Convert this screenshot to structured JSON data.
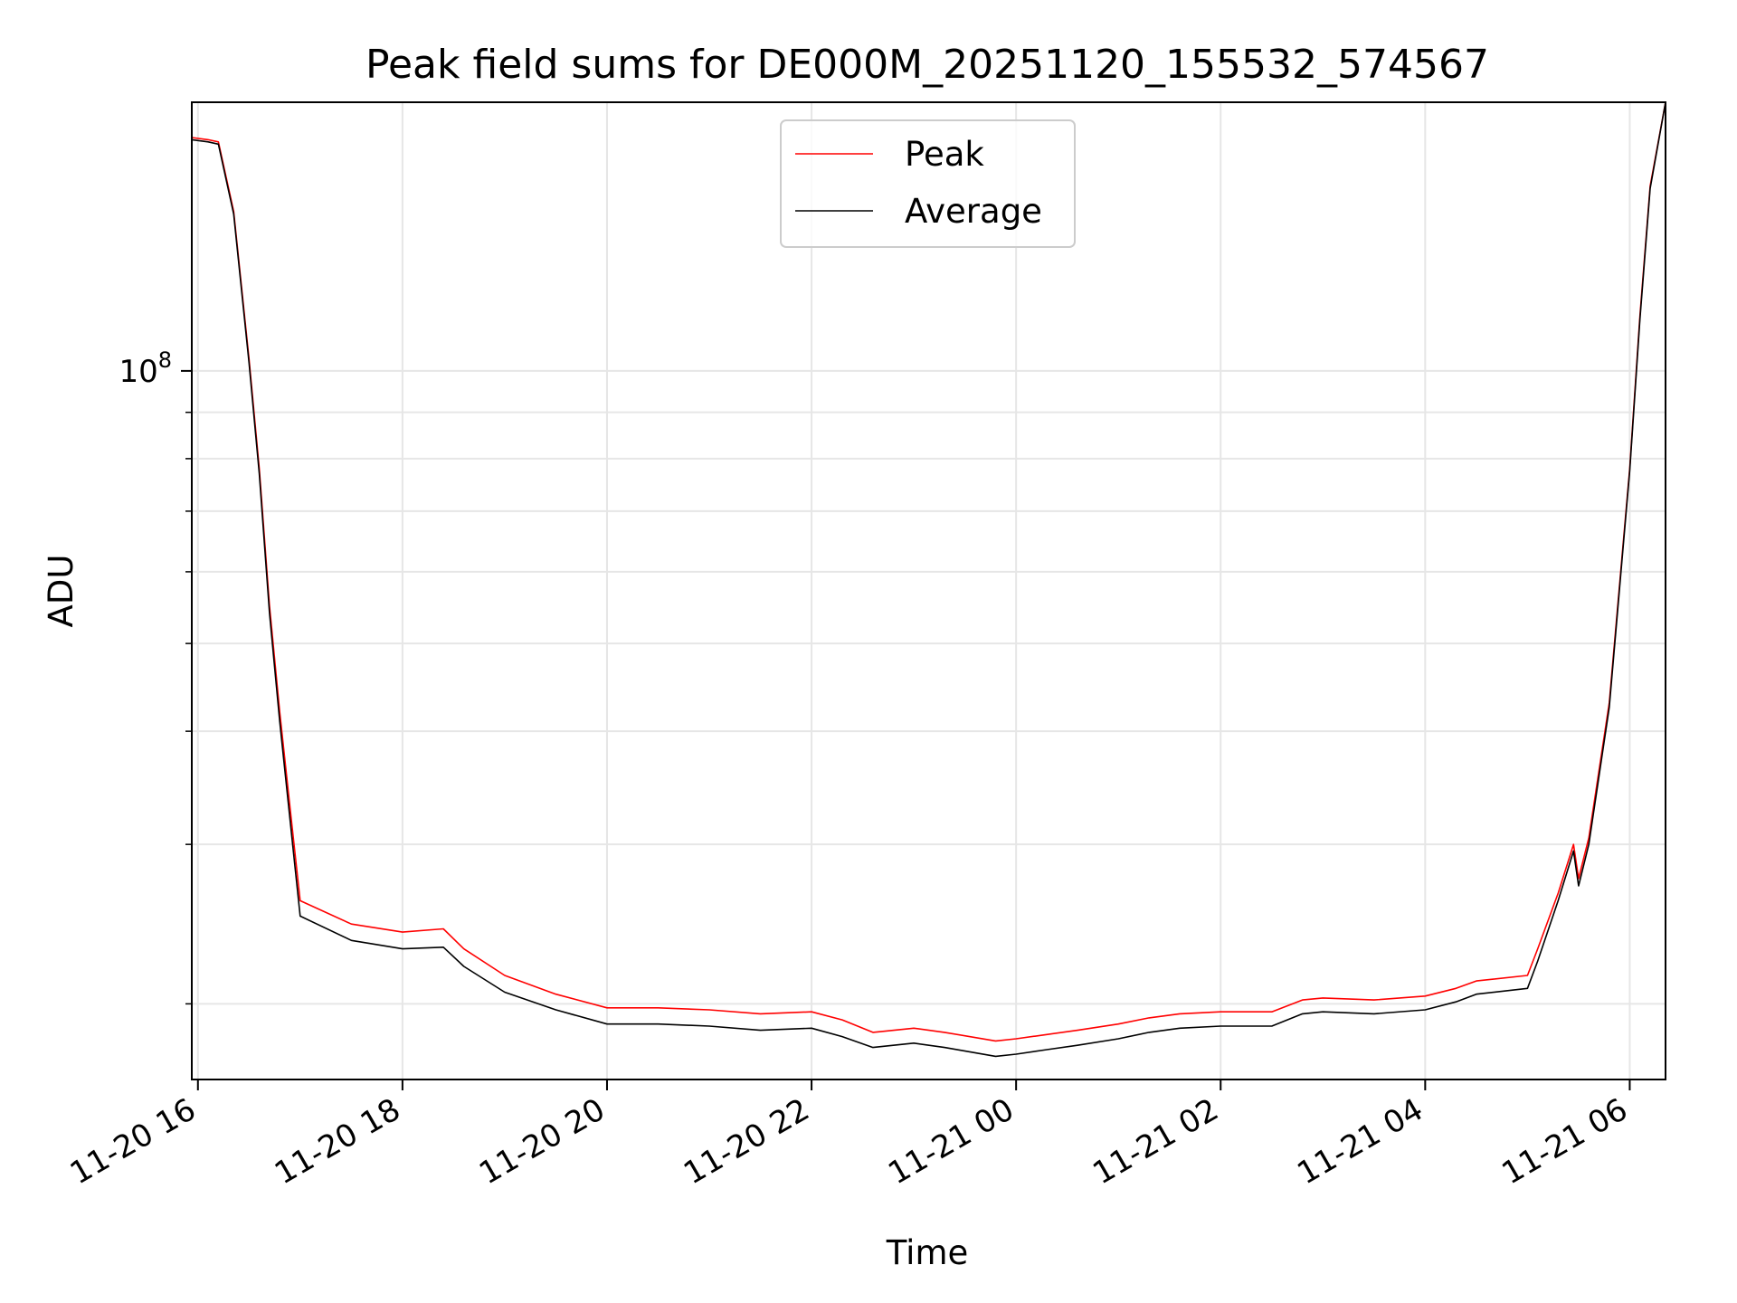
{
  "chart_data": {
    "type": "line",
    "title": "Peak field sums for DE000M_20251120_155532_574567",
    "xlabel": "Time",
    "ylabel": "ADU",
    "yscale": "log",
    "ylim": [
      16500000,
      198000000
    ],
    "xlim_hours": [
      -0.06,
      14.35
    ],
    "x_unit": "hours since 11-20 16:00",
    "x_ticks": [
      {
        "hour": 0,
        "label": "11-20 16"
      },
      {
        "hour": 2,
        "label": "11-20 18"
      },
      {
        "hour": 4,
        "label": "11-20 20"
      },
      {
        "hour": 6,
        "label": "11-20 22"
      },
      {
        "hour": 8,
        "label": "11-21 00"
      },
      {
        "hour": 10,
        "label": "11-21 02"
      },
      {
        "hour": 12,
        "label": "11-21 04"
      },
      {
        "hour": 14,
        "label": "11-21 06"
      }
    ],
    "y_major_ticks": [
      {
        "value": 100000000,
        "base": "10",
        "exponent": "8"
      }
    ],
    "y_minor_ticks": [
      20000000,
      30000000,
      40000000,
      50000000,
      60000000,
      70000000,
      80000000,
      90000000,
      200000000
    ],
    "grid": true,
    "legend_position": "upper center",
    "series": [
      {
        "name": "Peak",
        "color": "#ff0000",
        "x": [
          -0.06,
          0.1,
          0.2,
          0.35,
          0.5,
          0.6,
          0.7,
          0.8,
          0.9,
          1.0,
          1.5,
          2.0,
          2.4,
          2.6,
          3.0,
          3.5,
          4.0,
          4.5,
          5.0,
          5.5,
          6.0,
          6.3,
          6.6,
          7.0,
          7.3,
          7.8,
          8.0,
          8.3,
          8.6,
          9.0,
          9.3,
          9.6,
          10.0,
          10.5,
          10.8,
          11.0,
          11.5,
          12.0,
          12.3,
          12.5,
          13.0,
          13.1,
          13.3,
          13.45,
          13.5,
          13.6,
          13.8,
          14.0,
          14.1,
          14.2,
          14.35
        ],
        "y": [
          181000000,
          180000000,
          179000000,
          150000000,
          103000000,
          78000000,
          55000000,
          42000000,
          33000000,
          26000000,
          24500000,
          24000000,
          24200000,
          23000000,
          21500000,
          20500000,
          19800000,
          19800000,
          19700000,
          19500000,
          19600000,
          19200000,
          18600000,
          18800000,
          18600000,
          18200000,
          18300000,
          18500000,
          18700000,
          19000000,
          19300000,
          19500000,
          19600000,
          19600000,
          20200000,
          20300000,
          20200000,
          20400000,
          20800000,
          21200000,
          21500000,
          23000000,
          26500000,
          30000000,
          27500000,
          30500000,
          43000000,
          78000000,
          115000000,
          160000000,
          198000000
        ]
      },
      {
        "name": "Average",
        "color": "#000000",
        "x": [
          -0.06,
          0.1,
          0.2,
          0.35,
          0.5,
          0.6,
          0.7,
          0.8,
          0.9,
          1.0,
          1.5,
          2.0,
          2.4,
          2.6,
          3.0,
          3.5,
          4.0,
          4.5,
          5.0,
          5.5,
          6.0,
          6.3,
          6.6,
          7.0,
          7.3,
          7.8,
          8.0,
          8.3,
          8.6,
          9.0,
          9.3,
          9.6,
          10.0,
          10.5,
          10.8,
          11.0,
          11.5,
          12.0,
          12.3,
          12.5,
          13.0,
          13.1,
          13.3,
          13.45,
          13.5,
          13.6,
          13.8,
          14.0,
          14.1,
          14.2,
          14.35
        ],
        "y": [
          180000000,
          179000000,
          178000000,
          149000000,
          102000000,
          77000000,
          54000000,
          41000000,
          32000000,
          25000000,
          23500000,
          23000000,
          23100000,
          22000000,
          20600000,
          19700000,
          19000000,
          19000000,
          18900000,
          18700000,
          18800000,
          18400000,
          17900000,
          18100000,
          17900000,
          17500000,
          17600000,
          17800000,
          18000000,
          18300000,
          18600000,
          18800000,
          18900000,
          18900000,
          19500000,
          19600000,
          19500000,
          19700000,
          20100000,
          20500000,
          20800000,
          22300000,
          26000000,
          29500000,
          27000000,
          30000000,
          42500000,
          77500000,
          114000000,
          159000000,
          198000000
        ]
      }
    ]
  }
}
